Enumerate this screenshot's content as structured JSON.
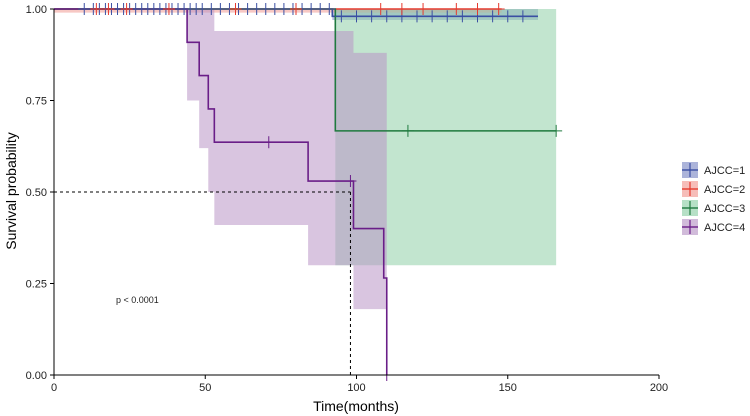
{
  "chart_data": {
    "type": "line",
    "subtype": "kaplan-meier",
    "title": "",
    "xlabel": "Time(months)",
    "ylabel": "Survival probability",
    "xlim": [
      0,
      200
    ],
    "ylim": [
      0,
      1
    ],
    "x_ticks": [
      0,
      50,
      100,
      150,
      200
    ],
    "x_tick_labels": [
      "0",
      "50",
      "100",
      "150",
      "200"
    ],
    "y_ticks": [
      0,
      0.25,
      0.5,
      0.75,
      1.0
    ],
    "y_tick_labels": [
      "0.00",
      "0.25",
      "0.50",
      "0.75",
      "1.00"
    ],
    "grid": false,
    "legend_position": "right",
    "annotation": "p < 0.0001",
    "median_survival_reference": {
      "x": 98,
      "y": 0.5
    },
    "series": [
      {
        "name": "AJCC=1",
        "color": "#3a4fa3",
        "band_color": "#7f8cc6",
        "steps": [
          [
            0,
            1.0
          ],
          [
            92,
            1.0
          ],
          [
            92,
            0.98
          ],
          [
            160,
            0.98
          ]
        ],
        "ci_band": [
          [
            0,
            1.0,
            1.0
          ],
          [
            92,
            0.97,
            1.0
          ],
          [
            160,
            0.97,
            1.0
          ]
        ],
        "censor_times": [
          10,
          13,
          15,
          17,
          19,
          21,
          23,
          25,
          27,
          29,
          31,
          33,
          35,
          37,
          39,
          41,
          43,
          45,
          47,
          49,
          52,
          55,
          58,
          61,
          64,
          67,
          70,
          73,
          76,
          79,
          82,
          85,
          88,
          91,
          95,
          100,
          105,
          110,
          115,
          120,
          125,
          130,
          135,
          140,
          145,
          150,
          155
        ]
      },
      {
        "name": "AJCC=2",
        "color": "#e63a2e",
        "band_color": "#f19a93",
        "steps": [
          [
            0,
            1.0
          ],
          [
            148,
            1.0
          ]
        ],
        "ci_band": [
          [
            0,
            0.99,
            1.0
          ],
          [
            148,
            0.99,
            1.0
          ]
        ],
        "censor_times": [
          14,
          18,
          24,
          38,
          60,
          80,
          108,
          115,
          122,
          133,
          140,
          147
        ]
      },
      {
        "name": "AJCC=3",
        "color": "#1f7a3f",
        "band_color": "#8fcfa8",
        "steps": [
          [
            0,
            1.0
          ],
          [
            93,
            1.0
          ],
          [
            93,
            0.667
          ],
          [
            166,
            0.667
          ]
        ],
        "ci_band": [
          [
            0,
            1.0,
            1.0
          ],
          [
            93,
            0.3,
            1.0
          ],
          [
            166,
            0.3,
            1.0
          ]
        ],
        "censor_times": [
          117,
          166
        ]
      },
      {
        "name": "AJCC=4",
        "color": "#6a1e88",
        "band_color": "#b996c6",
        "steps": [
          [
            0,
            1.0
          ],
          [
            44,
            1.0
          ],
          [
            44,
            0.909
          ],
          [
            48,
            0.909
          ],
          [
            48,
            0.818
          ],
          [
            51,
            0.818
          ],
          [
            51,
            0.727
          ],
          [
            53,
            0.727
          ],
          [
            53,
            0.636
          ],
          [
            84,
            0.636
          ],
          [
            84,
            0.53
          ],
          [
            99,
            0.53
          ],
          [
            99,
            0.4
          ],
          [
            109,
            0.4
          ],
          [
            109,
            0.265
          ],
          [
            110,
            0.265
          ],
          [
            110,
            0.0
          ]
        ],
        "ci_band": [
          [
            0,
            1.0,
            1.0
          ],
          [
            44,
            0.75,
            1.0
          ],
          [
            48,
            0.62,
            1.0
          ],
          [
            51,
            0.5,
            1.0
          ],
          [
            53,
            0.41,
            0.94
          ],
          [
            84,
            0.3,
            0.94
          ],
          [
            99,
            0.18,
            0.88
          ],
          [
            110,
            0.18,
            0.88
          ]
        ],
        "censor_times": [
          71,
          98,
          110
        ]
      }
    ]
  }
}
